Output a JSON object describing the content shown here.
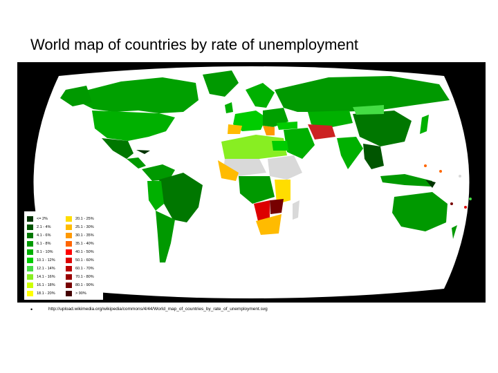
{
  "slide": {
    "title": "World map of countries by rate of unemployment",
    "bullet": "•",
    "source": "http://upload.wikimedia.org/wikipedia/commons/4/44/World_map_of_countries_by_rate_of_unemployment.svg"
  },
  "map": {
    "background_color": "#000000",
    "ocean_color": "#ffffff",
    "no_data_color": "#d9d9d9"
  },
  "legend": {
    "left_column": [
      {
        "label": "<= 2%",
        "color": "#003300"
      },
      {
        "label": "2.1 - 4%",
        "color": "#005500"
      },
      {
        "label": "4.1 - 6%",
        "color": "#007700"
      },
      {
        "label": "6.1 - 8%",
        "color": "#009900"
      },
      {
        "label": "8.1 - 10%",
        "color": "#00b000"
      },
      {
        "label": "10.1 - 12%",
        "color": "#00cc00"
      },
      {
        "label": "12.1 - 14%",
        "color": "#44dd44"
      },
      {
        "label": "14.1 - 16%",
        "color": "#88ee22"
      },
      {
        "label": "16.1 - 18%",
        "color": "#ccff00"
      },
      {
        "label": "18.1 - 20%",
        "color": "#ffff00"
      }
    ],
    "right_column": [
      {
        "label": "20.1 - 25%",
        "color": "#ffdd00"
      },
      {
        "label": "25.1 - 30%",
        "color": "#ffbb00"
      },
      {
        "label": "30.1 - 35%",
        "color": "#ff9900"
      },
      {
        "label": "35.1 - 40%",
        "color": "#ff6600"
      },
      {
        "label": "40.1 - 50%",
        "color": "#ff0000"
      },
      {
        "label": "50.1 - 60%",
        "color": "#dd0000"
      },
      {
        "label": "60.1 - 70%",
        "color": "#bb0000"
      },
      {
        "label": "70.1 - 80%",
        "color": "#990000"
      },
      {
        "label": "80.1 - 90%",
        "color": "#770000"
      },
      {
        "label": "> 90%",
        "color": "#440000"
      }
    ]
  }
}
